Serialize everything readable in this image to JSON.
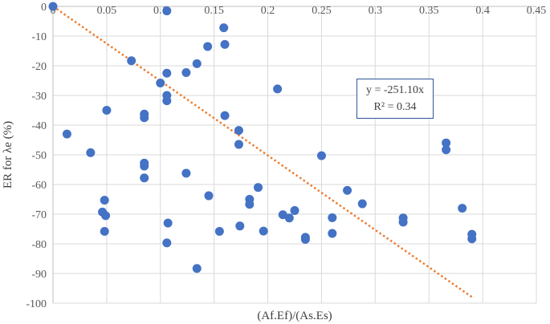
{
  "chart_data": {
    "type": "scatter",
    "xlabel": "(Af.Ef)/(As.Es)",
    "ylabel": "ER for λe (%)",
    "xlim": [
      0,
      0.45
    ],
    "ylim": [
      -100,
      0
    ],
    "x_ticks": [
      "0",
      "0.05",
      "0.1",
      "0.15",
      "0.2",
      "0.25",
      "0.3",
      "0.35",
      "0.4",
      "0.45"
    ],
    "y_ticks": [
      "0",
      "-10",
      "-20",
      "-30",
      "-40",
      "-50",
      "-60",
      "-70",
      "-80",
      "-90",
      "-100"
    ],
    "grid": true,
    "marker_color": "#4472c4",
    "trendline_color": "#ed7d31",
    "series": [
      {
        "points": [
          [
            0.0,
            0.0
          ],
          [
            0.013,
            -43
          ],
          [
            0.035,
            -49.3
          ],
          [
            0.046,
            -69.3
          ],
          [
            0.048,
            -75.8
          ],
          [
            0.048,
            -65.3
          ],
          [
            0.049,
            -70.5
          ],
          [
            0.05,
            -35
          ],
          [
            0.073,
            -18.3
          ],
          [
            0.085,
            -36.3
          ],
          [
            0.085,
            -37.5
          ],
          [
            0.085,
            -52.8
          ],
          [
            0.085,
            -53.8
          ],
          [
            0.085,
            -57.8
          ],
          [
            0.1,
            -25.8
          ],
          [
            0.106,
            -1.5
          ],
          [
            0.106,
            -22.5
          ],
          [
            0.106,
            -30
          ],
          [
            0.106,
            -31.8
          ],
          [
            0.106,
            -79.7
          ],
          [
            0.107,
            -73
          ],
          [
            0.124,
            -22.3
          ],
          [
            0.124,
            -56.2
          ],
          [
            0.134,
            -19.3
          ],
          [
            0.134,
            -88.3
          ],
          [
            0.144,
            -13.5
          ],
          [
            0.145,
            -63.8
          ],
          [
            0.155,
            -75.8
          ],
          [
            0.159,
            -7.2
          ],
          [
            0.16,
            -12.8
          ],
          [
            0.16,
            -36.8
          ],
          [
            0.173,
            -41.8
          ],
          [
            0.173,
            -46.5
          ],
          [
            0.174,
            -74
          ],
          [
            0.183,
            -65
          ],
          [
            0.183,
            -66.7
          ],
          [
            0.191,
            -61
          ],
          [
            0.196,
            -75.7
          ],
          [
            0.209,
            -27.8
          ],
          [
            0.214,
            -70.2
          ],
          [
            0.22,
            -71.3
          ],
          [
            0.225,
            -68.8
          ],
          [
            0.235,
            -77.8
          ],
          [
            0.235,
            -78.5
          ],
          [
            0.25,
            -50.3
          ],
          [
            0.26,
            -71.2
          ],
          [
            0.26,
            -76.5
          ],
          [
            0.274,
            -62
          ],
          [
            0.288,
            -66.5
          ],
          [
            0.326,
            -71.3
          ],
          [
            0.326,
            -72.7
          ],
          [
            0.366,
            -46
          ],
          [
            0.366,
            -48.3
          ],
          [
            0.381,
            -68
          ],
          [
            0.39,
            -76.8
          ],
          [
            0.39,
            -78.3
          ]
        ]
      }
    ],
    "trendline": {
      "slope": -251.1,
      "intercept": 0,
      "x_range": [
        0,
        0.39
      ]
    },
    "annotation": {
      "equation": "y = -251.10x",
      "r2": "R² = 0.34"
    }
  }
}
